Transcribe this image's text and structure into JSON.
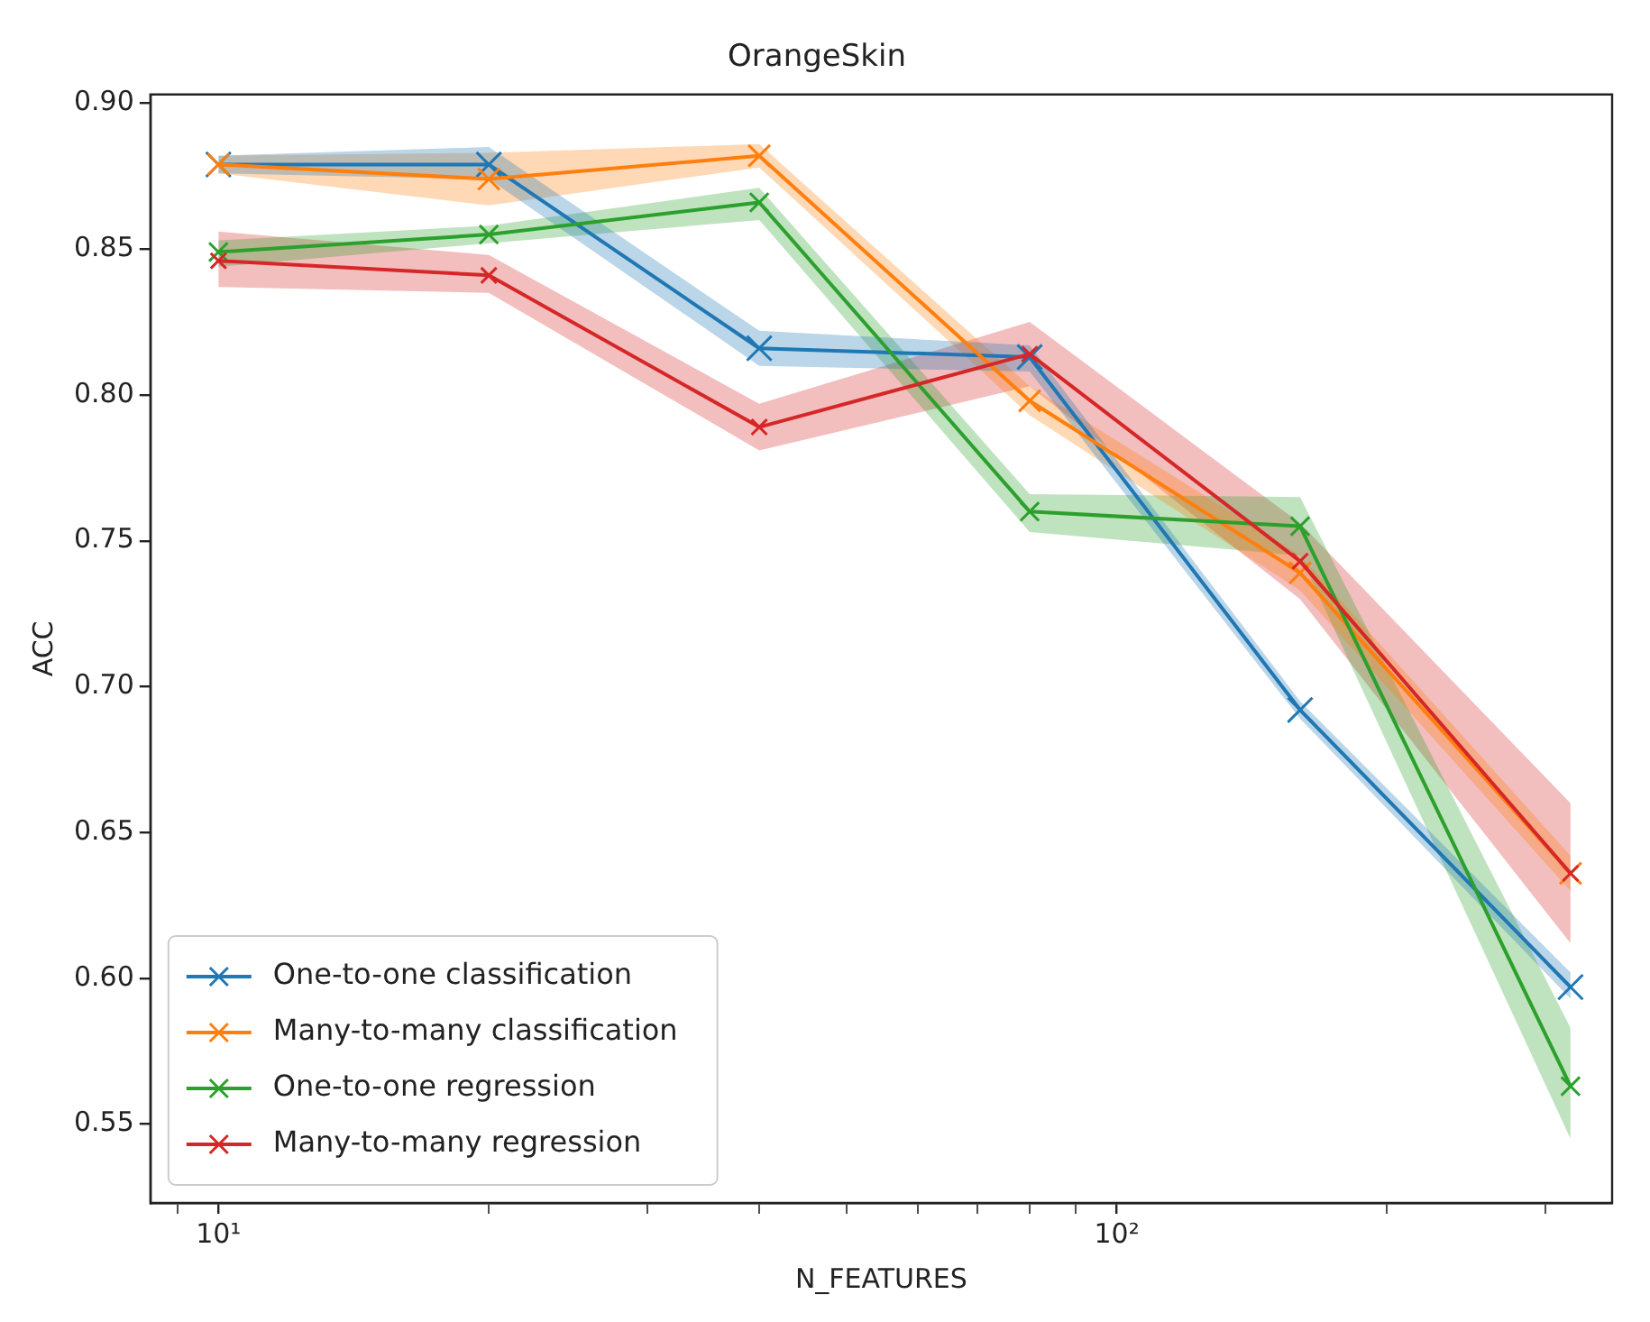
{
  "chart_data": {
    "type": "line",
    "title": "OrangeSkin",
    "xlabel": "N_FEATURES",
    "ylabel": "ACC",
    "log": "x",
    "x": [
      10,
      20,
      40,
      80,
      160,
      320
    ],
    "xlim": [
      8.4,
      356
    ],
    "xticks": [
      {
        "value": 9,
        "label": null
      },
      {
        "value": 10,
        "label": "10¹"
      },
      {
        "value": 20,
        "label": null
      },
      {
        "value": 30,
        "label": null
      },
      {
        "value": 40,
        "label": null
      },
      {
        "value": 50,
        "label": null
      },
      {
        "value": 60,
        "label": null
      },
      {
        "value": 70,
        "label": null
      },
      {
        "value": 80,
        "label": null
      },
      {
        "value": 90,
        "label": null
      },
      {
        "value": 100,
        "label": "10²"
      },
      {
        "value": 200,
        "label": null
      },
      {
        "value": 300,
        "label": null
      }
    ],
    "ylim": [
      0.523,
      0.903
    ],
    "yticks": [
      {
        "value": 0.55,
        "label": "0.55"
      },
      {
        "value": 0.6,
        "label": "0.60"
      },
      {
        "value": 0.65,
        "label": "0.65"
      },
      {
        "value": 0.7,
        "label": "0.70"
      },
      {
        "value": 0.75,
        "label": "0.75"
      },
      {
        "value": 0.8,
        "label": "0.80"
      },
      {
        "value": 0.85,
        "label": "0.85"
      },
      {
        "value": 0.9,
        "label": "0.90"
      }
    ],
    "grid": false,
    "legend": "bottom left",
    "marker": "cross",
    "line_style": "solid",
    "series": [
      {
        "name": "One-to-one classification",
        "color": "#1f77b4",
        "values": [
          0.879,
          0.879,
          0.816,
          0.813,
          0.692,
          0.597
        ],
        "lower": [
          0.876,
          0.874,
          0.81,
          0.808,
          0.689,
          0.593
        ],
        "upper": [
          0.882,
          0.885,
          0.822,
          0.817,
          0.695,
          0.602
        ]
      },
      {
        "name": "Many-to-many classification",
        "color": "#ff7f0e",
        "values": [
          0.879,
          0.874,
          0.882,
          0.798,
          0.739,
          0.636
        ],
        "lower": [
          0.876,
          0.865,
          0.878,
          0.793,
          0.733,
          0.63
        ],
        "upper": [
          0.882,
          0.883,
          0.886,
          0.803,
          0.745,
          0.642
        ]
      },
      {
        "name": "One-to-one regression",
        "color": "#2ca02c",
        "values": [
          0.849,
          0.855,
          0.866,
          0.76,
          0.755,
          0.563
        ],
        "lower": [
          0.844,
          0.852,
          0.86,
          0.753,
          0.745,
          0.545
        ],
        "upper": [
          0.853,
          0.858,
          0.871,
          0.766,
          0.765,
          0.583
        ]
      },
      {
        "name": "Many-to-many regression",
        "color": "#d62728",
        "values": [
          0.846,
          0.841,
          0.789,
          0.814,
          0.743,
          0.636
        ],
        "lower": [
          0.837,
          0.835,
          0.781,
          0.803,
          0.73,
          0.612
        ],
        "upper": [
          0.856,
          0.848,
          0.797,
          0.825,
          0.756,
          0.66
        ]
      }
    ]
  }
}
